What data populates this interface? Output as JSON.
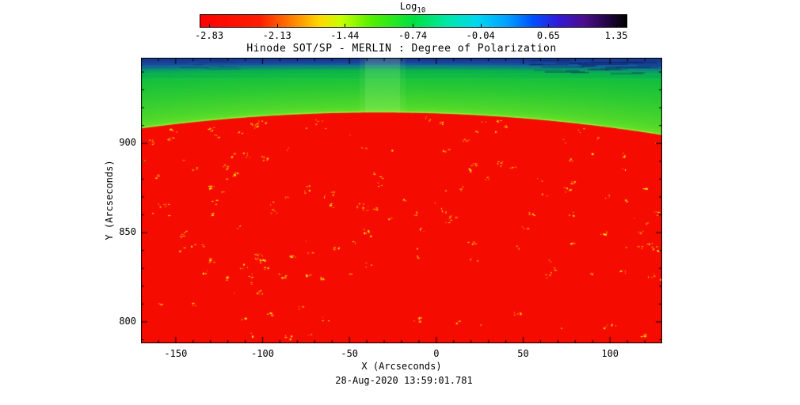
{
  "page": {
    "background": "#ffffff"
  },
  "chart_data": {
    "type": "heatmap",
    "title": "Hinode SOT/SP - MERLIN : Degree of Polarization",
    "xlabel": "X (Arcseconds)",
    "ylabel": "Y (Arcseconds)",
    "timestamp": "28-Aug-2020 13:59:01.781",
    "x_range": [
      -170,
      130
    ],
    "y_range": [
      788,
      948
    ],
    "x_ticks": [
      "-150",
      "-100",
      "-50",
      "0",
      "50",
      "100"
    ],
    "x_tick_values": [
      -150,
      -100,
      -50,
      0,
      50,
      100
    ],
    "y_ticks": [
      "800",
      "850",
      "900"
    ],
    "y_tick_values": [
      800,
      850,
      900
    ],
    "minor_tick_step": 10,
    "grid": false,
    "colorbar": {
      "label": "Log",
      "label_subscript": "10",
      "scale": "log10",
      "range": [
        -2.83,
        1.35
      ],
      "tick_labels": [
        "-2.83",
        "-2.13",
        "-1.44",
        "-0.74",
        "-0.04",
        "0.65",
        "1.35"
      ],
      "stops": [
        [
          0.0,
          "#ff0000"
        ],
        [
          0.14,
          "#ff1e00"
        ],
        [
          0.21,
          "#ff7a00"
        ],
        [
          0.28,
          "#ffd800"
        ],
        [
          0.33,
          "#c8ff00"
        ],
        [
          0.4,
          "#55f000"
        ],
        [
          0.5,
          "#00e040"
        ],
        [
          0.58,
          "#00e8a8"
        ],
        [
          0.65,
          "#00d8f0"
        ],
        [
          0.72,
          "#00a0ff"
        ],
        [
          0.78,
          "#0050ff"
        ],
        [
          0.84,
          "#3318d8"
        ],
        [
          0.9,
          "#4a0f8c"
        ],
        [
          0.95,
          "#26064a"
        ],
        [
          1.0,
          "#000000"
        ]
      ]
    },
    "solar_limb": {
      "apex_x_arcsec": -33,
      "apex_y_arcsec": 917.3,
      "curvature": 0.000475
    },
    "disk_color": "#f60b00",
    "limb_edge_color": "#aaf03c",
    "sky_gradient": [
      [
        0.0,
        "#1a3a8c"
      ],
      [
        0.1,
        "#1c4fa6"
      ],
      [
        0.16,
        "#0f8c80"
      ],
      [
        0.22,
        "#0ab34e"
      ],
      [
        0.32,
        "#15c03c"
      ],
      [
        0.6,
        "#2fcc32"
      ],
      [
        0.88,
        "#4fd82b"
      ],
      [
        1.0,
        "#68e226"
      ]
    ],
    "bright_band_x_arcsec": [
      -41,
      -21
    ],
    "speckles": {
      "clusters": 170,
      "colors": [
        "#ffff00",
        "#ffe400",
        "#ffb300",
        "#ff8800"
      ],
      "weights": [
        0.45,
        0.3,
        0.15,
        0.1
      ],
      "seed": 1337
    }
  }
}
